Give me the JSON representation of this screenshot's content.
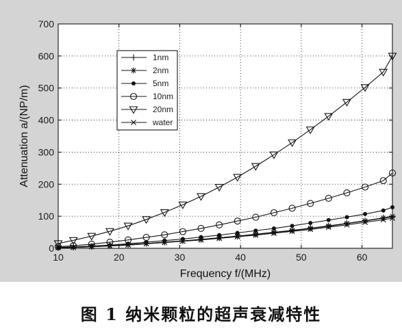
{
  "caption": "图 1  纳米颗粒的超声衰减特性",
  "chart_data": {
    "type": "line",
    "title": "",
    "xlabel": "Frequency f/(MHz)",
    "ylabel": "Attenuation a/(NP/m)",
    "xlim": [
      10,
      65
    ],
    "ylim": [
      0,
      700
    ],
    "xticks": [
      10,
      20,
      30,
      40,
      50,
      60
    ],
    "yticks": [
      0,
      100,
      200,
      300,
      400,
      500,
      600,
      700
    ],
    "grid": true,
    "legend_position": "top-left",
    "x": [
      10,
      12.5,
      15.5,
      18.5,
      21.5,
      24.5,
      27.5,
      30.5,
      33.5,
      36.5,
      39.5,
      42.5,
      45.5,
      48.5,
      51.5,
      54.5,
      57.5,
      60.5,
      63.5,
      65
    ],
    "series": [
      {
        "name": "1nm",
        "marker": "plus",
        "values": [
          2,
          3,
          5,
          8,
          11,
          15,
          19,
          23,
          27,
          32,
          37,
          43,
          49,
          55,
          62,
          69,
          77,
          85,
          94,
          98
        ]
      },
      {
        "name": "2nm",
        "marker": "asterisk",
        "values": [
          2,
          3,
          5,
          8,
          12,
          15,
          19,
          23,
          28,
          33,
          38,
          44,
          50,
          56,
          63,
          70,
          78,
          86,
          95,
          100
        ]
      },
      {
        "name": "5nm",
        "marker": "dot",
        "values": [
          3,
          4,
          7,
          10,
          14,
          19,
          24,
          29,
          35,
          41,
          48,
          55,
          62,
          70,
          79,
          88,
          97,
          107,
          118,
          128
        ]
      },
      {
        "name": "10nm",
        "marker": "circle",
        "values": [
          5,
          8,
          13,
          19,
          26,
          34,
          42,
          52,
          62,
          73,
          85,
          97,
          111,
          125,
          140,
          156,
          173,
          191,
          211,
          235
        ]
      },
      {
        "name": "20nm",
        "marker": "triangle-down",
        "values": [
          15,
          25,
          38,
          53,
          70,
          90,
          112,
          136,
          162,
          191,
          222,
          256,
          292,
          330,
          370,
          412,
          456,
          502,
          550,
          600
        ]
      },
      {
        "name": "water",
        "marker": "cross",
        "values": [
          2,
          3,
          5,
          7,
          10,
          14,
          18,
          22,
          26,
          31,
          36,
          41,
          47,
          53,
          59,
          66,
          73,
          81,
          89,
          94
        ]
      }
    ]
  }
}
